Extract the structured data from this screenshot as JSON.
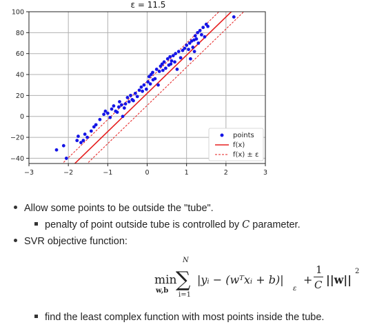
{
  "chart_data": {
    "type": "scatter",
    "title": "ε = 11.5",
    "xlabel": "",
    "ylabel": "",
    "xlim": [
      -3,
      3
    ],
    "ylim": [
      -45,
      100
    ],
    "xticks": [
      "−3",
      "−2",
      "−1",
      "0",
      "1",
      "2",
      "3"
    ],
    "yticks": [
      "−40",
      "−20",
      "0",
      "20",
      "40",
      "60",
      "80",
      "100"
    ],
    "grid": true,
    "legend_position": "lower-right",
    "legend": {
      "points": "points",
      "fit": "f(x)",
      "tube": "f(x) ± ε"
    },
    "fit": {
      "slope": 36.5,
      "intercept": 22
    },
    "epsilon": 11.5,
    "colors": {
      "points": "#1515e6",
      "fit": "#e61e1e",
      "grid": "#b0b0b0"
    },
    "points": [
      [
        -2.3,
        -32
      ],
      [
        -2.12,
        -28
      ],
      [
        -2.05,
        -40
      ],
      [
        -1.78,
        -23
      ],
      [
        -1.75,
        -19
      ],
      [
        -1.68,
        -25
      ],
      [
        -1.62,
        -23
      ],
      [
        -1.58,
        -17
      ],
      [
        -1.52,
        -20
      ],
      [
        -1.42,
        -14
      ],
      [
        -1.3,
        -8
      ],
      [
        -1.2,
        -3
      ],
      [
        -1.1,
        2
      ],
      [
        -1.06,
        5
      ],
      [
        -1.0,
        3
      ],
      [
        -0.94,
        -1
      ],
      [
        -0.9,
        7
      ],
      [
        -0.85,
        10
      ],
      [
        -0.8,
        5
      ],
      [
        -0.76,
        4
      ],
      [
        -0.72,
        9
      ],
      [
        -0.7,
        14
      ],
      [
        -0.62,
        0
      ],
      [
        -0.58,
        8
      ],
      [
        -0.55,
        12
      ],
      [
        -0.5,
        18
      ],
      [
        -0.46,
        14
      ],
      [
        -0.42,
        20
      ],
      [
        -0.38,
        16
      ],
      [
        -0.3,
        22
      ],
      [
        -0.25,
        19
      ],
      [
        -0.2,
        25
      ],
      [
        -0.15,
        28
      ],
      [
        -0.12,
        24
      ],
      [
        -0.08,
        30
      ],
      [
        -0.02,
        26
      ],
      [
        0.02,
        33
      ],
      [
        0.05,
        38
      ],
      [
        0.08,
        31
      ],
      [
        0.1,
        40
      ],
      [
        0.14,
        42
      ],
      [
        0.2,
        36
      ],
      [
        0.24,
        45
      ],
      [
        0.28,
        30
      ],
      [
        0.31,
        43
      ],
      [
        0.34,
        48
      ],
      [
        0.38,
        50
      ],
      [
        0.4,
        44
      ],
      [
        0.43,
        52
      ],
      [
        0.47,
        46
      ],
      [
        0.52,
        55
      ],
      [
        0.55,
        49
      ],
      [
        0.58,
        57
      ],
      [
        0.62,
        53
      ],
      [
        0.66,
        58
      ],
      [
        0.7,
        52
      ],
      [
        0.72,
        60
      ],
      [
        0.76,
        45
      ],
      [
        0.8,
        62
      ],
      [
        0.85,
        56
      ],
      [
        0.9,
        63
      ],
      [
        0.95,
        65
      ],
      [
        1.0,
        68
      ],
      [
        1.05,
        64
      ],
      [
        1.08,
        70
      ],
      [
        1.1,
        55
      ],
      [
        1.13,
        72
      ],
      [
        1.16,
        66
      ],
      [
        1.19,
        73
      ],
      [
        1.22,
        77
      ],
      [
        1.25,
        74
      ],
      [
        1.28,
        80
      ],
      [
        1.3,
        70
      ],
      [
        1.34,
        82
      ],
      [
        1.38,
        78
      ],
      [
        1.42,
        85
      ],
      [
        1.46,
        76
      ],
      [
        1.5,
        88
      ],
      [
        1.54,
        86
      ],
      [
        2.2,
        95
      ],
      [
        -1.35,
        -10
      ],
      [
        -0.65,
        11
      ],
      [
        -0.35,
        15
      ],
      [
        0.15,
        35
      ],
      [
        0.6,
        50
      ],
      [
        1.2,
        62
      ]
    ]
  },
  "bullets": {
    "b1": "Allow some points to be outside the \"tube\".",
    "b1_sub_prefix": "penalty of point outside tube is controlled by ",
    "b1_sub_var": "C",
    "b1_sub_suffix": " parameter.",
    "b2": "SVR objective function:",
    "b2_sub": "find the least complex function with most points inside the tube."
  },
  "formula": {
    "min": "min",
    "min_sub": "w,b",
    "sum_top": "N",
    "sum_bottom": "i=1",
    "term": "|yᵢ − (wᵀxᵢ + b)|",
    "eps_sub": "ε",
    "plus": "+",
    "frac_num": "1",
    "frac_den": "C",
    "norm": "||w||",
    "norm_sup": "2"
  }
}
